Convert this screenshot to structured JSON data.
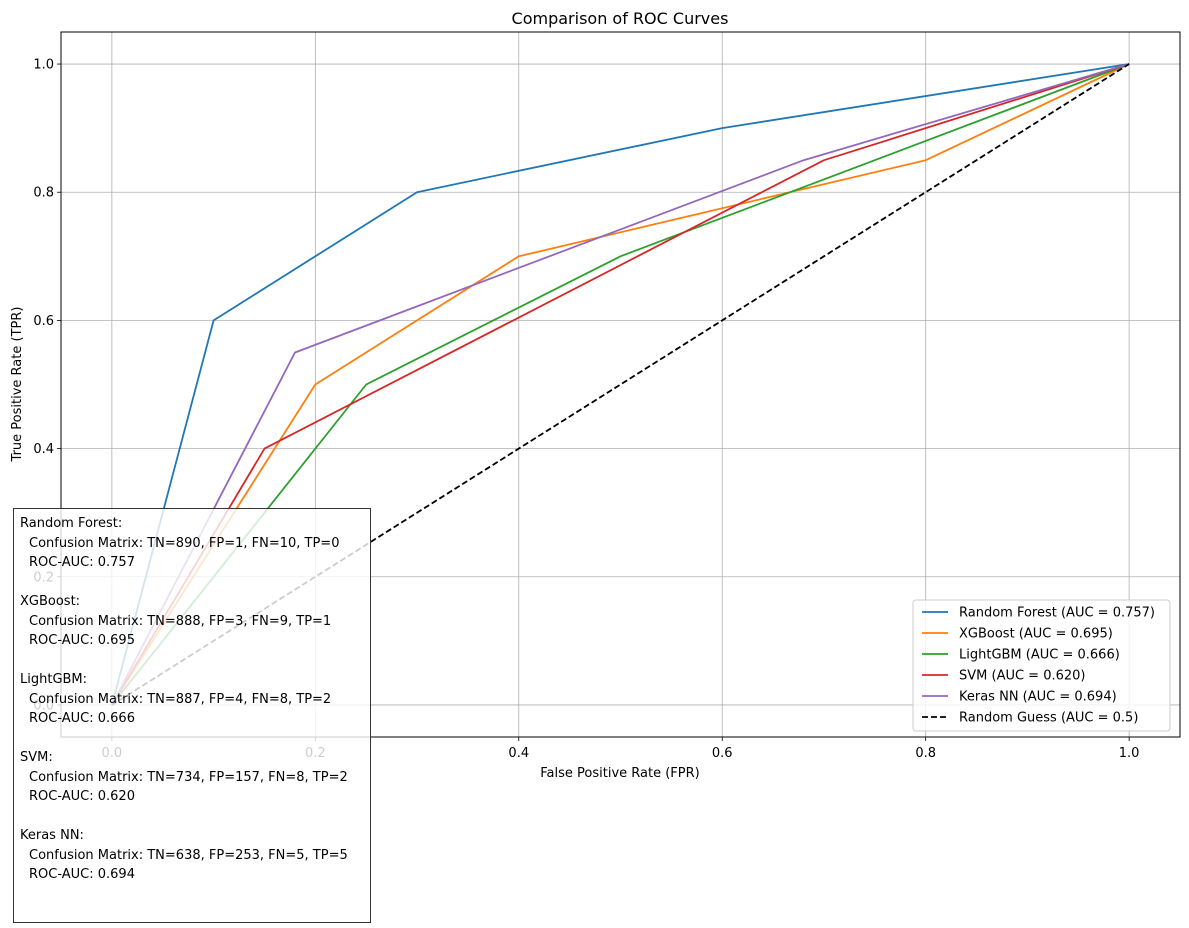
{
  "chart_data": {
    "type": "line",
    "title": "Comparison of ROC Curves",
    "xlabel": "False Positive Rate (FPR)",
    "ylabel": "True Positive Rate (TPR)",
    "xlim": [
      -0.05,
      1.05
    ],
    "ylim": [
      -0.05,
      1.05
    ],
    "xticks": [
      0.0,
      0.2,
      0.4,
      0.6,
      0.8,
      1.0
    ],
    "yticks": [
      0.0,
      0.2,
      0.4,
      0.6,
      0.8,
      1.0
    ],
    "xtick_labels": [
      "0.0",
      "0.2",
      "0.4",
      "0.6",
      "0.8",
      "1.0"
    ],
    "ytick_labels": [
      "0.0",
      "0.2",
      "0.4",
      "0.6",
      "0.8",
      "1.0"
    ],
    "grid": true,
    "legend_position": "lower-right",
    "series": [
      {
        "name": "Random Forest (AUC = 0.757)",
        "color": "#1f77b4",
        "dash": "solid",
        "x": [
          0.0,
          0.1,
          0.3,
          0.6,
          1.0
        ],
        "y": [
          0.0,
          0.6,
          0.8,
          0.9,
          1.0
        ]
      },
      {
        "name": "XGBoost (AUC = 0.695)",
        "color": "#ff7f0e",
        "dash": "solid",
        "x": [
          0.0,
          0.2,
          0.4,
          0.8,
          1.0
        ],
        "y": [
          0.0,
          0.5,
          0.7,
          0.85,
          1.0
        ]
      },
      {
        "name": "LightGBM (AUC = 0.666)",
        "color": "#2ca02c",
        "dash": "solid",
        "x": [
          0.0,
          0.25,
          0.5,
          1.0
        ],
        "y": [
          0.0,
          0.5,
          0.7,
          1.0
        ]
      },
      {
        "name": "SVM (AUC = 0.620)",
        "color": "#d62728",
        "dash": "solid",
        "x": [
          0.0,
          0.15,
          0.7,
          1.0
        ],
        "y": [
          0.0,
          0.4,
          0.85,
          1.0
        ]
      },
      {
        "name": "Keras NN (AUC = 0.694)",
        "color": "#9467bd",
        "dash": "solid",
        "x": [
          0.0,
          0.18,
          0.68,
          1.0
        ],
        "y": [
          0.0,
          0.55,
          0.85,
          1.0
        ]
      },
      {
        "name": "Random Guess (AUC = 0.5)",
        "color": "#000000",
        "dash": "dashed",
        "x": [
          0.0,
          1.0
        ],
        "y": [
          0.0,
          1.0
        ]
      }
    ]
  },
  "info_box": [
    {
      "model": "Random Forest:",
      "matrix": "Confusion Matrix: TN=890, FP=1, FN=10, TP=0",
      "auc": "ROC-AUC: 0.757"
    },
    {
      "model": "XGBoost:",
      "matrix": "Confusion Matrix: TN=888, FP=3, FN=9, TP=1",
      "auc": "ROC-AUC: 0.695"
    },
    {
      "model": "LightGBM:",
      "matrix": "Confusion Matrix: TN=887, FP=4, FN=8, TP=2",
      "auc": "ROC-AUC: 0.666"
    },
    {
      "model": "SVM:",
      "matrix": "Confusion Matrix: TN=734, FP=157, FN=8, TP=2",
      "auc": "ROC-AUC: 0.620"
    },
    {
      "model": "Keras NN:",
      "matrix": "Confusion Matrix: TN=638, FP=253, FN=5, TP=5",
      "auc": "ROC-AUC: 0.694"
    }
  ]
}
